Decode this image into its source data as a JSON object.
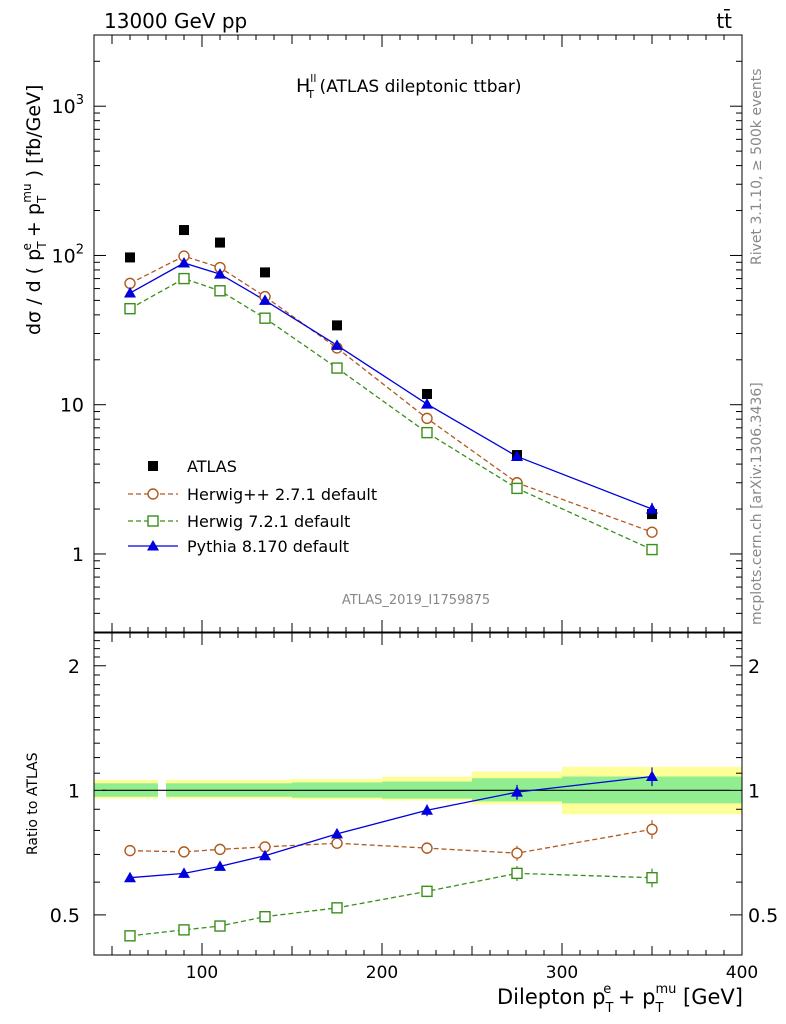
{
  "header": {
    "left": "13000 GeV pp",
    "right": "tt̄"
  },
  "side_texts": {
    "rivet": "Rivet 3.1.10, ≥ 500k events",
    "mcplots": "mcplots.cern.ch [arXiv:1306.3436]"
  },
  "analysis_id": "ATLAS_2019_I1759875",
  "colors": {
    "atlas": "#000000",
    "herwigpp": "#b05a1e",
    "herwig7": "#3a8f1a",
    "pythia": "#0000dd",
    "band_green": "#90ee90",
    "band_yellow": "#ffff99"
  },
  "chart_data": [
    {
      "type": "scatter",
      "panel": "main",
      "title": "H_T^ll (ATLAS dileptonic ttbar)",
      "title_main": "H",
      "title_sup": "ll",
      "title_sub": "T",
      "title_rest": " (ATLAS dileptonic ttbar)",
      "ylabel": "dσ / d ( p_T^e + p_T^mu ) [fb/GeV]",
      "yscale": "log",
      "xlim": [
        40,
        400
      ],
      "ylim": [
        0.3,
        3000
      ],
      "yticklabels": [
        "1",
        "10",
        "10^2",
        "10^3"
      ],
      "legend_position": "lower-left",
      "x": [
        60,
        90,
        110,
        135,
        175,
        225,
        275,
        350
      ],
      "series": [
        {
          "name": "ATLAS",
          "marker": "filled-square",
          "values": [
            97,
            148,
            122,
            77,
            34,
            11.8,
            4.6,
            1.85
          ]
        },
        {
          "name": "Herwig++ 2.7.1 default",
          "marker": "open-circle",
          "linestyle": "dashed",
          "values": [
            65,
            99,
            83,
            53,
            24,
            8.1,
            3.0,
            1.4
          ]
        },
        {
          "name": "Herwig 7.2.1 default",
          "marker": "open-square",
          "linestyle": "dashed",
          "values": [
            44,
            70,
            58,
            38,
            17.6,
            6.5,
            2.75,
            1.07
          ]
        },
        {
          "name": "Pythia 8.170 default",
          "marker": "filled-triangle",
          "linestyle": "solid",
          "values": [
            56,
            89,
            75,
            50,
            25,
            10.1,
            4.5,
            2.0
          ]
        }
      ]
    },
    {
      "type": "line",
      "panel": "ratio",
      "ylabel": "Ratio to ATLAS",
      "xlabel": "Dilepton p_T^e + p_T^mu [GeV]",
      "xlim": [
        40,
        400
      ],
      "ylim": [
        0.4,
        2.4
      ],
      "yscale": "log",
      "xticklabels": [
        "100",
        "200",
        "300",
        "400"
      ],
      "yticklabels": [
        "0.5",
        "1",
        "2"
      ],
      "x": [
        60,
        90,
        110,
        135,
        175,
        225,
        275,
        350
      ],
      "bins": [
        [
          40,
          80
        ],
        [
          80,
          100
        ],
        [
          100,
          120
        ],
        [
          120,
          150
        ],
        [
          150,
          200
        ],
        [
          200,
          250
        ],
        [
          250,
          300
        ],
        [
          300,
          400
        ]
      ],
      "band_stat": [
        [
          0.965,
          1.04
        ],
        [
          0.965,
          1.04
        ],
        [
          0.965,
          1.04
        ],
        [
          0.965,
          1.04
        ],
        [
          0.96,
          1.045
        ],
        [
          0.955,
          1.05
        ],
        [
          0.94,
          1.07
        ],
        [
          0.93,
          1.08
        ]
      ],
      "band_total": [
        [
          0.955,
          1.06
        ],
        [
          0.955,
          1.06
        ],
        [
          0.955,
          1.06
        ],
        [
          0.955,
          1.06
        ],
        [
          0.95,
          1.065
        ],
        [
          0.945,
          1.08
        ],
        [
          0.925,
          1.11
        ],
        [
          0.875,
          1.14
        ]
      ],
      "series": [
        {
          "name": "Herwig++ 2.7.1 default",
          "values": [
            0.715,
            0.71,
            0.72,
            0.73,
            0.745,
            0.725,
            0.705,
            0.805
          ]
        },
        {
          "name": "Herwig 7.2.1 default",
          "values": [
            0.445,
            0.46,
            0.47,
            0.495,
            0.52,
            0.57,
            0.63,
            0.615
          ]
        },
        {
          "name": "Pythia 8.170 default",
          "values": [
            0.615,
            0.63,
            0.655,
            0.695,
            0.785,
            0.895,
            0.99,
            1.08
          ]
        }
      ]
    }
  ]
}
